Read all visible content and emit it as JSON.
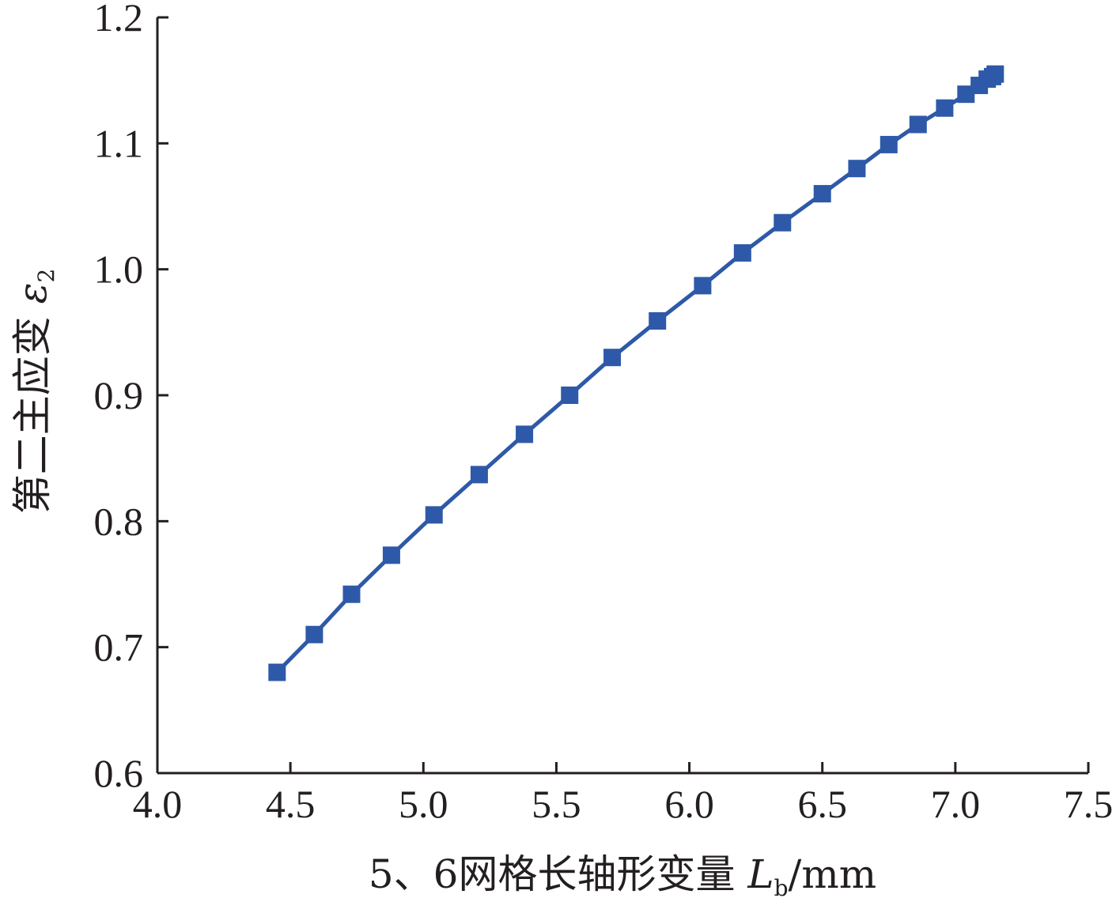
{
  "chart_data": {
    "type": "line",
    "title": "",
    "xlabel": {
      "prefix": "5、6网格长轴形变量 ",
      "symbol": "L",
      "subscript": "b",
      "unit": "/mm"
    },
    "ylabel": {
      "prefix": "第二主应变 ",
      "symbol": "ε",
      "subscript": "2"
    },
    "xlim": [
      4.0,
      7.5
    ],
    "ylim": [
      0.6,
      1.2
    ],
    "x_ticks": [
      "4.0",
      "4.5",
      "5.0",
      "5.5",
      "6.0",
      "6.5",
      "7.0",
      "7.5"
    ],
    "y_ticks": [
      "0.6",
      "0.7",
      "0.8",
      "0.9",
      "1.0",
      "1.1",
      "1.2"
    ],
    "grid": false,
    "legend": "none",
    "series_color": "#2e59a8",
    "marker": "square",
    "series": [
      {
        "x": [
          4.45,
          4.59,
          4.73,
          4.88,
          5.04,
          5.21,
          5.38,
          5.55,
          5.71,
          5.88,
          6.05,
          6.2,
          6.35,
          6.5,
          6.63,
          6.75,
          6.86,
          6.96,
          7.04,
          7.09,
          7.12,
          7.14,
          7.15
        ],
        "y": [
          0.68,
          0.71,
          0.742,
          0.773,
          0.805,
          0.837,
          0.869,
          0.9,
          0.93,
          0.959,
          0.987,
          1.013,
          1.037,
          1.06,
          1.08,
          1.099,
          1.115,
          1.128,
          1.139,
          1.146,
          1.151,
          1.153,
          1.155
        ]
      }
    ]
  }
}
